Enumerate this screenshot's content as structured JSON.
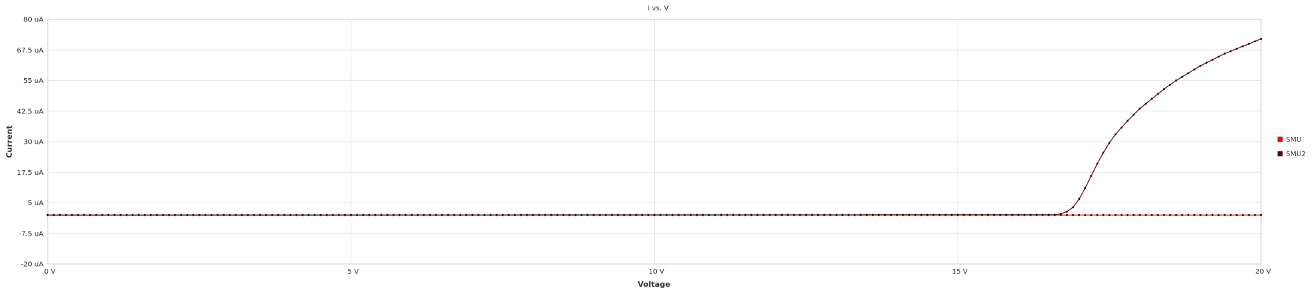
{
  "chart_data": {
    "type": "line",
    "title": "I vs. V",
    "xlabel": "Voltage",
    "ylabel": "Current",
    "x_unit": "V",
    "y_unit": "uA",
    "xlim": [
      0,
      20
    ],
    "ylim": [
      -20,
      80
    ],
    "x_ticks": [
      0,
      5,
      10,
      15,
      20
    ],
    "x_tick_labels": [
      "0 V",
      "5 V",
      "10 V",
      "15 V",
      "20 V"
    ],
    "y_ticks": [
      80,
      67.5,
      55,
      42.5,
      30,
      17.5,
      5,
      -7.5,
      -20
    ],
    "y_tick_labels": [
      "80 uA",
      "67.5 uA",
      "55 uA",
      "42.5 uA",
      "30 uA",
      "17.5 uA",
      "5 uA",
      "-7.5 uA",
      "-20 uA"
    ],
    "grid": true,
    "legend_position": "right",
    "series": [
      {
        "name": "SMU",
        "color": "#ff0000",
        "marker": "dot",
        "x_start": 0,
        "x_end": 20,
        "x_step": 0.1,
        "values_constant": 0
      },
      {
        "name": "SMU2",
        "color": "#5a0000",
        "marker": "dot",
        "x": [
          0,
          16.6,
          16.7,
          16.8,
          16.9,
          17.0,
          17.1,
          17.2,
          17.3,
          17.4,
          17.5,
          17.6,
          17.8,
          18.0,
          18.2,
          18.4,
          18.6,
          18.8,
          19.0,
          19.2,
          19.4,
          19.6,
          19.8,
          20.0
        ],
        "values": [
          0,
          0.1,
          0.5,
          1.4,
          3.2,
          6.5,
          11.0,
          16.0,
          21.0,
          25.5,
          29.5,
          33.0,
          38.5,
          43.5,
          47.5,
          51.5,
          55.0,
          58.0,
          61.0,
          63.5,
          66.0,
          68.0,
          70.0,
          72.0
        ],
        "point_step": 0.1
      }
    ]
  }
}
